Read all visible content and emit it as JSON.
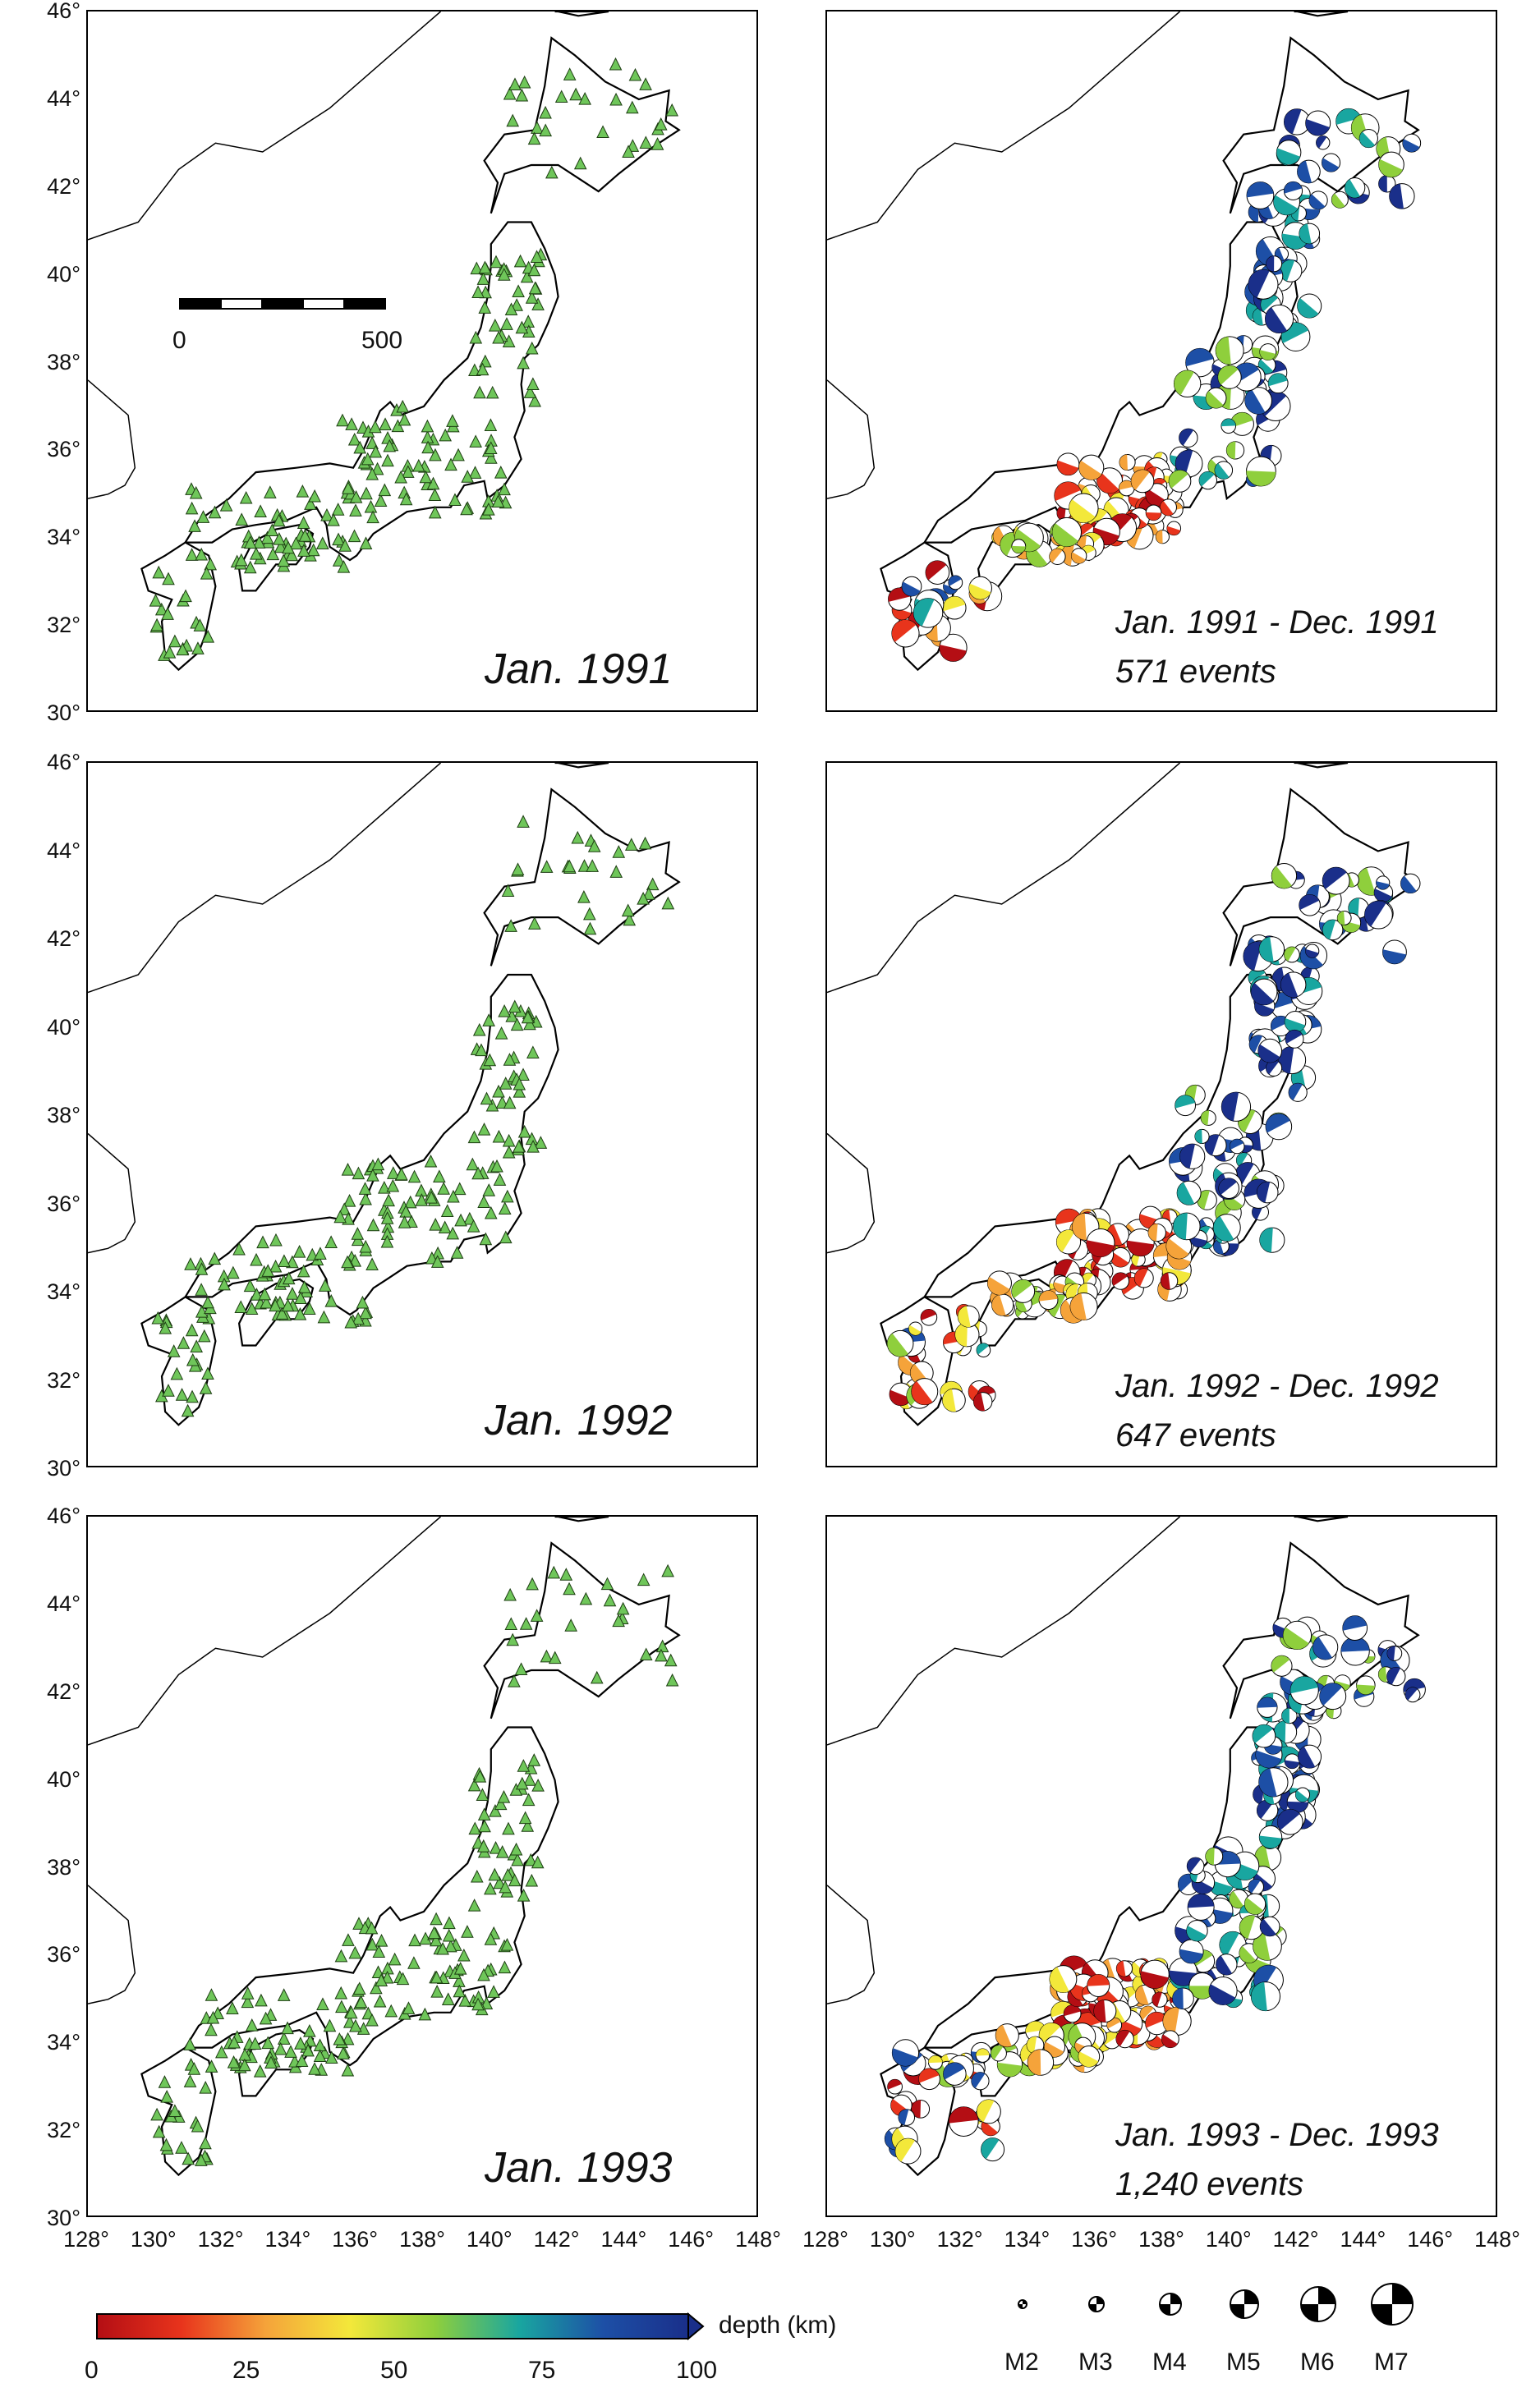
{
  "lat_ticks": [
    "46°",
    "44°",
    "42°",
    "40°",
    "38°",
    "36°",
    "34°",
    "32°",
    "30°"
  ],
  "lon_ticks": [
    "128°",
    "130°",
    "132°",
    "134°",
    "136°",
    "138°",
    "140°",
    "142°",
    "144°",
    "146°",
    "148°"
  ],
  "scalebar": {
    "start": "0",
    "end": "500"
  },
  "rows": [
    {
      "station_label": "Jan. 1991",
      "range_label": "Jan. 1991 - Dec. 1991",
      "events_label": "571 events"
    },
    {
      "station_label": "Jan. 1992",
      "range_label": "Jan. 1992 - Dec. 1992",
      "events_label": "647 events"
    },
    {
      "station_label": "Jan. 1993",
      "range_label": "Jan. 1993 - Dec. 1993",
      "events_label": "1,240 events"
    }
  ],
  "depth_legend": {
    "label": "depth (km)",
    "ticks": [
      "0",
      "25",
      "50",
      "75",
      "100"
    ],
    "colors": [
      "#b40e14",
      "#e8341c",
      "#f5a33a",
      "#f3e83a",
      "#8fcf3c",
      "#19a6a0",
      "#1d4fa6",
      "#1a2f8a"
    ]
  },
  "magnitude_legend": [
    "M2",
    "M3",
    "M4",
    "M5",
    "M6",
    "M7"
  ],
  "colors": {
    "station": "#6fc65a",
    "coast": "#000000"
  }
}
